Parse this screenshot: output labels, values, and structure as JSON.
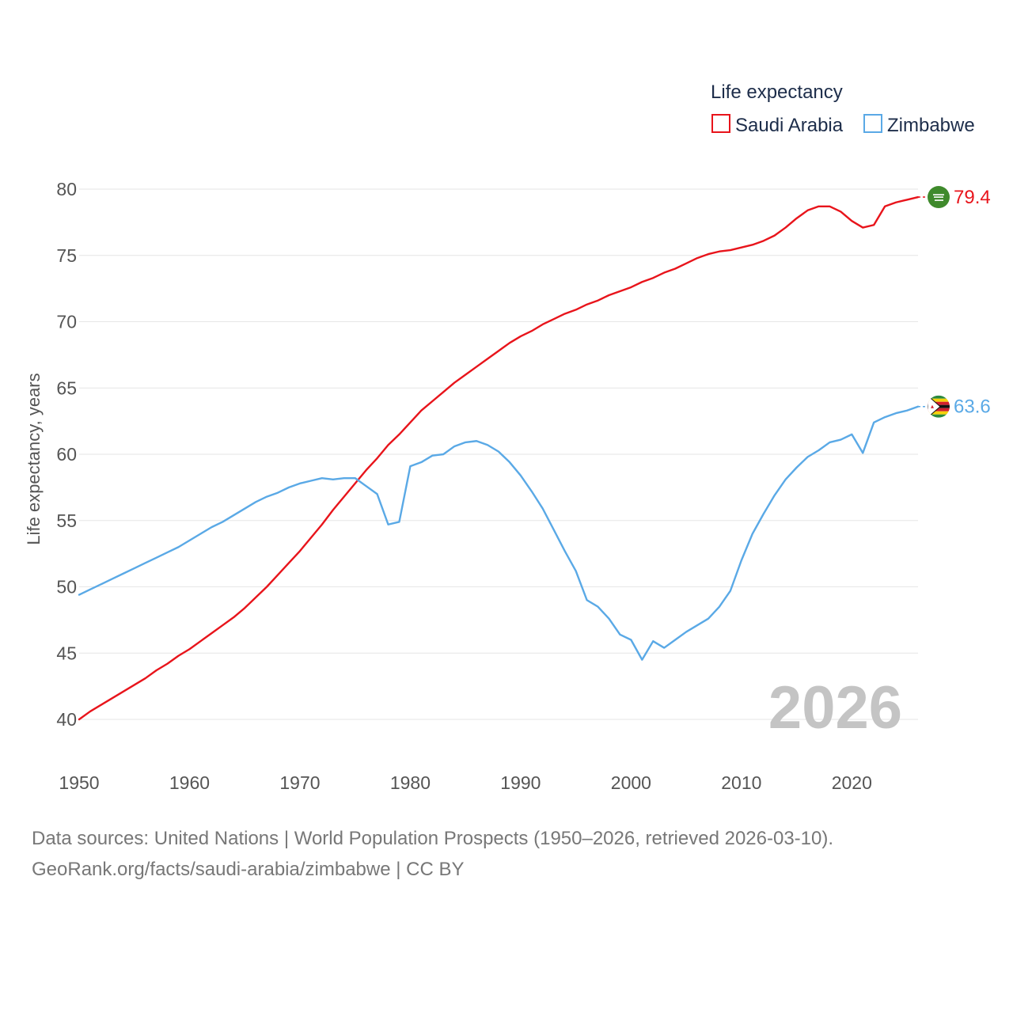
{
  "chart_data": {
    "type": "line",
    "title": "",
    "legend_title": "Life expectancy",
    "legend_position": "top-right",
    "xlabel": "",
    "ylabel": "Life expectancy, years",
    "xlim": [
      1950,
      2026
    ],
    "ylim": [
      40,
      80
    ],
    "x_ticks": [
      "1950",
      "1960",
      "1970",
      "1980",
      "1990",
      "2000",
      "2010",
      "2020"
    ],
    "y_ticks": [
      "40",
      "45",
      "50",
      "55",
      "60",
      "65",
      "70",
      "75",
      "80"
    ],
    "current_year_label": "2026",
    "x": [
      1950,
      1951,
      1952,
      1953,
      1954,
      1955,
      1956,
      1957,
      1958,
      1959,
      1960,
      1961,
      1962,
      1963,
      1964,
      1965,
      1966,
      1967,
      1968,
      1969,
      1970,
      1971,
      1972,
      1973,
      1974,
      1975,
      1976,
      1977,
      1978,
      1979,
      1980,
      1981,
      1982,
      1983,
      1984,
      1985,
      1986,
      1987,
      1988,
      1989,
      1990,
      1991,
      1992,
      1993,
      1994,
      1995,
      1996,
      1997,
      1998,
      1999,
      2000,
      2001,
      2002,
      2003,
      2004,
      2005,
      2006,
      2007,
      2008,
      2009,
      2010,
      2011,
      2012,
      2013,
      2014,
      2015,
      2016,
      2017,
      2018,
      2019,
      2020,
      2021,
      2022,
      2023,
      2024,
      2025,
      2026
    ],
    "series": [
      {
        "name": "Saudi Arabia",
        "color": "#e8141b",
        "end_label": "79.4",
        "flag_icon": "saudi-arabia-flag-icon",
        "values": [
          40.0,
          40.6,
          41.1,
          41.6,
          42.1,
          42.6,
          43.1,
          43.7,
          44.2,
          44.8,
          45.3,
          45.9,
          46.5,
          47.1,
          47.7,
          48.4,
          49.2,
          50.0,
          50.9,
          51.8,
          52.7,
          53.7,
          54.7,
          55.8,
          56.8,
          57.8,
          58.8,
          59.7,
          60.7,
          61.5,
          62.4,
          63.3,
          64.0,
          64.7,
          65.4,
          66.0,
          66.6,
          67.2,
          67.8,
          68.4,
          68.9,
          69.3,
          69.8,
          70.2,
          70.6,
          70.9,
          71.3,
          71.6,
          72.0,
          72.3,
          72.6,
          73.0,
          73.3,
          73.7,
          74.0,
          74.4,
          74.8,
          75.1,
          75.3,
          75.4,
          75.6,
          75.8,
          76.1,
          76.5,
          77.1,
          77.8,
          78.4,
          78.7,
          78.7,
          78.3,
          77.6,
          77.1,
          77.3,
          78.7,
          79.0,
          79.2,
          79.4
        ]
      },
      {
        "name": "Zimbabwe",
        "color": "#5aa9e6",
        "end_label": "63.6",
        "flag_icon": "zimbabwe-flag-icon",
        "values": [
          49.4,
          49.8,
          50.2,
          50.6,
          51.0,
          51.4,
          51.8,
          52.2,
          52.6,
          53.0,
          53.5,
          54.0,
          54.5,
          54.9,
          55.4,
          55.9,
          56.4,
          56.8,
          57.1,
          57.5,
          57.8,
          58.0,
          58.2,
          58.1,
          58.2,
          58.2,
          57.6,
          57.0,
          54.7,
          54.9,
          59.1,
          59.4,
          59.9,
          60.0,
          60.6,
          60.9,
          61.0,
          60.7,
          60.2,
          59.4,
          58.4,
          57.2,
          55.9,
          54.3,
          52.7,
          51.2,
          49.0,
          48.5,
          47.6,
          46.4,
          46.0,
          44.5,
          45.9,
          45.4,
          46.0,
          46.6,
          47.1,
          47.6,
          48.5,
          49.7,
          52.0,
          54.0,
          55.5,
          56.9,
          58.1,
          59.0,
          59.8,
          60.3,
          60.9,
          61.1,
          61.5,
          60.1,
          62.4,
          62.8,
          63.1,
          63.3,
          63.6
        ]
      }
    ]
  },
  "footer": {
    "sources_line": "Data sources: United Nations | World Population Prospects (1950–2026, retrieved 2026-03-10).",
    "url_line": "GeoRank.org/facts/saudi-arabia/zimbabwe | CC BY"
  }
}
